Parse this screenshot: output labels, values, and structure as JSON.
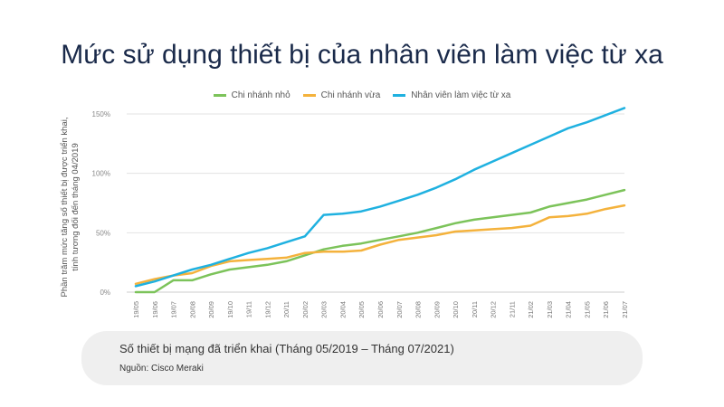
{
  "chart_data": {
    "type": "line",
    "title": "Mức sử dụng thiết bị của nhân viên làm việc từ xa",
    "ylabel_lines": [
      "Phần trăm mức tăng số thiết bị được triển khai,",
      "tính tương đối đến tháng 04/2019"
    ],
    "xlabel": "",
    "ylim": [
      0,
      150
    ],
    "yticks": [
      0,
      50,
      100,
      150
    ],
    "ytick_labels": [
      "0%",
      "50%",
      "100%",
      "150%"
    ],
    "grid": true,
    "legend_position": "top-center",
    "x": [
      "19/05",
      "19/06",
      "19/07",
      "20/08",
      "20/09",
      "19/10",
      "19/11",
      "19/12",
      "20/11",
      "20/02",
      "20/03",
      "20/04",
      "20/05",
      "20/06",
      "20/07",
      "20/08",
      "20/09",
      "20/10",
      "20/11",
      "20/12",
      "21/11",
      "21/02",
      "21/03",
      "21/04",
      "21/05",
      "21/06",
      "21/07"
    ],
    "series": [
      {
        "name": "Chi nhánh nhỏ",
        "color": "#7cc35a",
        "values": [
          0,
          0,
          10,
          10,
          15,
          19,
          21,
          23,
          26,
          31,
          36,
          39,
          41,
          44,
          47,
          50,
          54,
          58,
          61,
          63,
          65,
          67,
          72,
          75,
          78,
          82,
          86
        ]
      },
      {
        "name": "Chi nhánh vừa",
        "color": "#f4b23c",
        "values": [
          7,
          11,
          14,
          16,
          22,
          26,
          27,
          28,
          29,
          33,
          34,
          34,
          35,
          40,
          44,
          46,
          48,
          51,
          52,
          53,
          54,
          56,
          63,
          64,
          66,
          70,
          73
        ]
      },
      {
        "name": "Nhân viên làm việc từ xa",
        "color": "#1fb1e0",
        "values": [
          5,
          9,
          14,
          19,
          23,
          28,
          33,
          37,
          42,
          47,
          65,
          66,
          68,
          72,
          77,
          82,
          88,
          95,
          103,
          110,
          117,
          124,
          131,
          138,
          143,
          149,
          155
        ]
      }
    ]
  },
  "footer": {
    "caption": "Số thiết bị mạng đã triển khai (Tháng 05/2019 – Tháng 07/2021)",
    "source": "Nguồn: Cisco Meraki"
  }
}
